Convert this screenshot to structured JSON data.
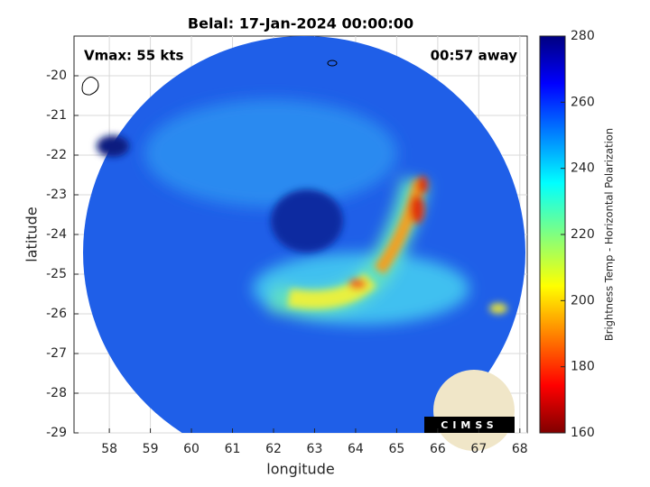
{
  "chart_data": {
    "type": "image",
    "title": "Belal: 17-Jan-2024 00:00:00",
    "xlabel": "longitude",
    "ylabel": "latitude",
    "xlim": [
      57.14,
      68.18
    ],
    "ylim": [
      -29,
      -19
    ],
    "xticks": [
      58,
      59,
      60,
      61,
      62,
      63,
      64,
      65,
      66,
      67,
      68
    ],
    "yticks": [
      -20,
      -21,
      -22,
      -23,
      -24,
      -25,
      -26,
      -27,
      -28,
      -29
    ],
    "grid": true,
    "annotations": [
      "Vmax: 55 kts",
      "00:57 away"
    ],
    "logo_text": "CIMSS",
    "colorbar": {
      "label": "Brightness Temp - Horizontal Polarization",
      "clim": [
        160,
        280
      ],
      "ticks": [
        160,
        180,
        200,
        220,
        240,
        260,
        280
      ],
      "colormap": "jet"
    }
  }
}
